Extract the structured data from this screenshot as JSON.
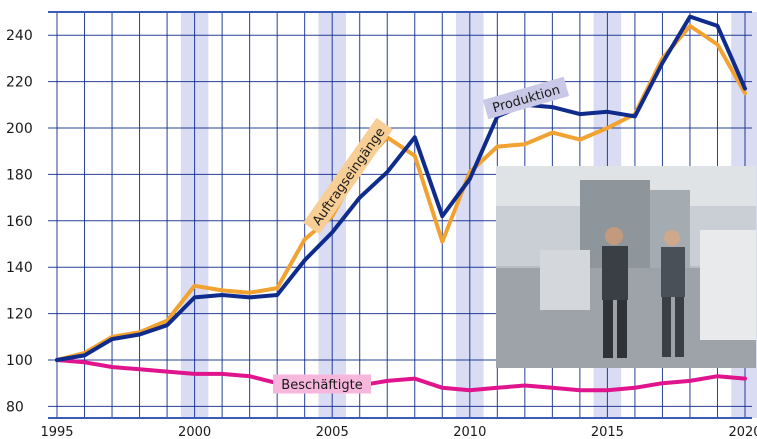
{
  "chart_data": {
    "type": "line",
    "title": "",
    "xlabel": "",
    "ylabel": "",
    "xlim": [
      1995,
      2020
    ],
    "ylim": [
      80,
      250
    ],
    "y_ticks": [
      80,
      100,
      120,
      140,
      160,
      180,
      200,
      220,
      240
    ],
    "x_ticks": [
      1995,
      2000,
      2005,
      2010,
      2015,
      2020
    ],
    "grid": true,
    "x": [
      1995,
      1996,
      1997,
      1998,
      1999,
      2000,
      2001,
      2002,
      2003,
      2004,
      2005,
      2006,
      2007,
      2008,
      2009,
      2010,
      2011,
      2012,
      2013,
      2014,
      2015,
      2016,
      2017,
      2018,
      2019,
      2020
    ],
    "series": [
      {
        "name": "Auftragseingänge",
        "color": "#f2a230",
        "values": [
          100,
          103,
          110,
          112,
          117,
          132,
          130,
          129,
          131,
          152,
          162,
          183,
          196,
          188,
          151,
          181,
          192,
          193,
          198,
          195,
          200,
          206,
          230,
          244,
          236,
          215
        ]
      },
      {
        "name": "Produktion",
        "color": "#0f2b8c",
        "values": [
          100,
          102,
          109,
          111,
          115,
          127,
          128,
          127,
          128,
          143,
          155,
          170,
          181,
          196,
          162,
          178,
          205,
          210,
          209,
          206,
          207,
          205,
          228,
          248,
          244,
          217
        ]
      },
      {
        "name": "Beschäftigte",
        "color": "#e0148c",
        "values": [
          100,
          99,
          97,
          96,
          95,
          94,
          94,
          93,
          90,
          90,
          89,
          89,
          91,
          92,
          88,
          87,
          88,
          89,
          88,
          87,
          87,
          88,
          90,
          91,
          93,
          92
        ]
      }
    ]
  },
  "colors": {
    "grid": "#0f2b8c",
    "band": "#d9dcf2",
    "axis": "#3a5bb8"
  },
  "photo": {
    "icon": "factory-workers-photo"
  }
}
